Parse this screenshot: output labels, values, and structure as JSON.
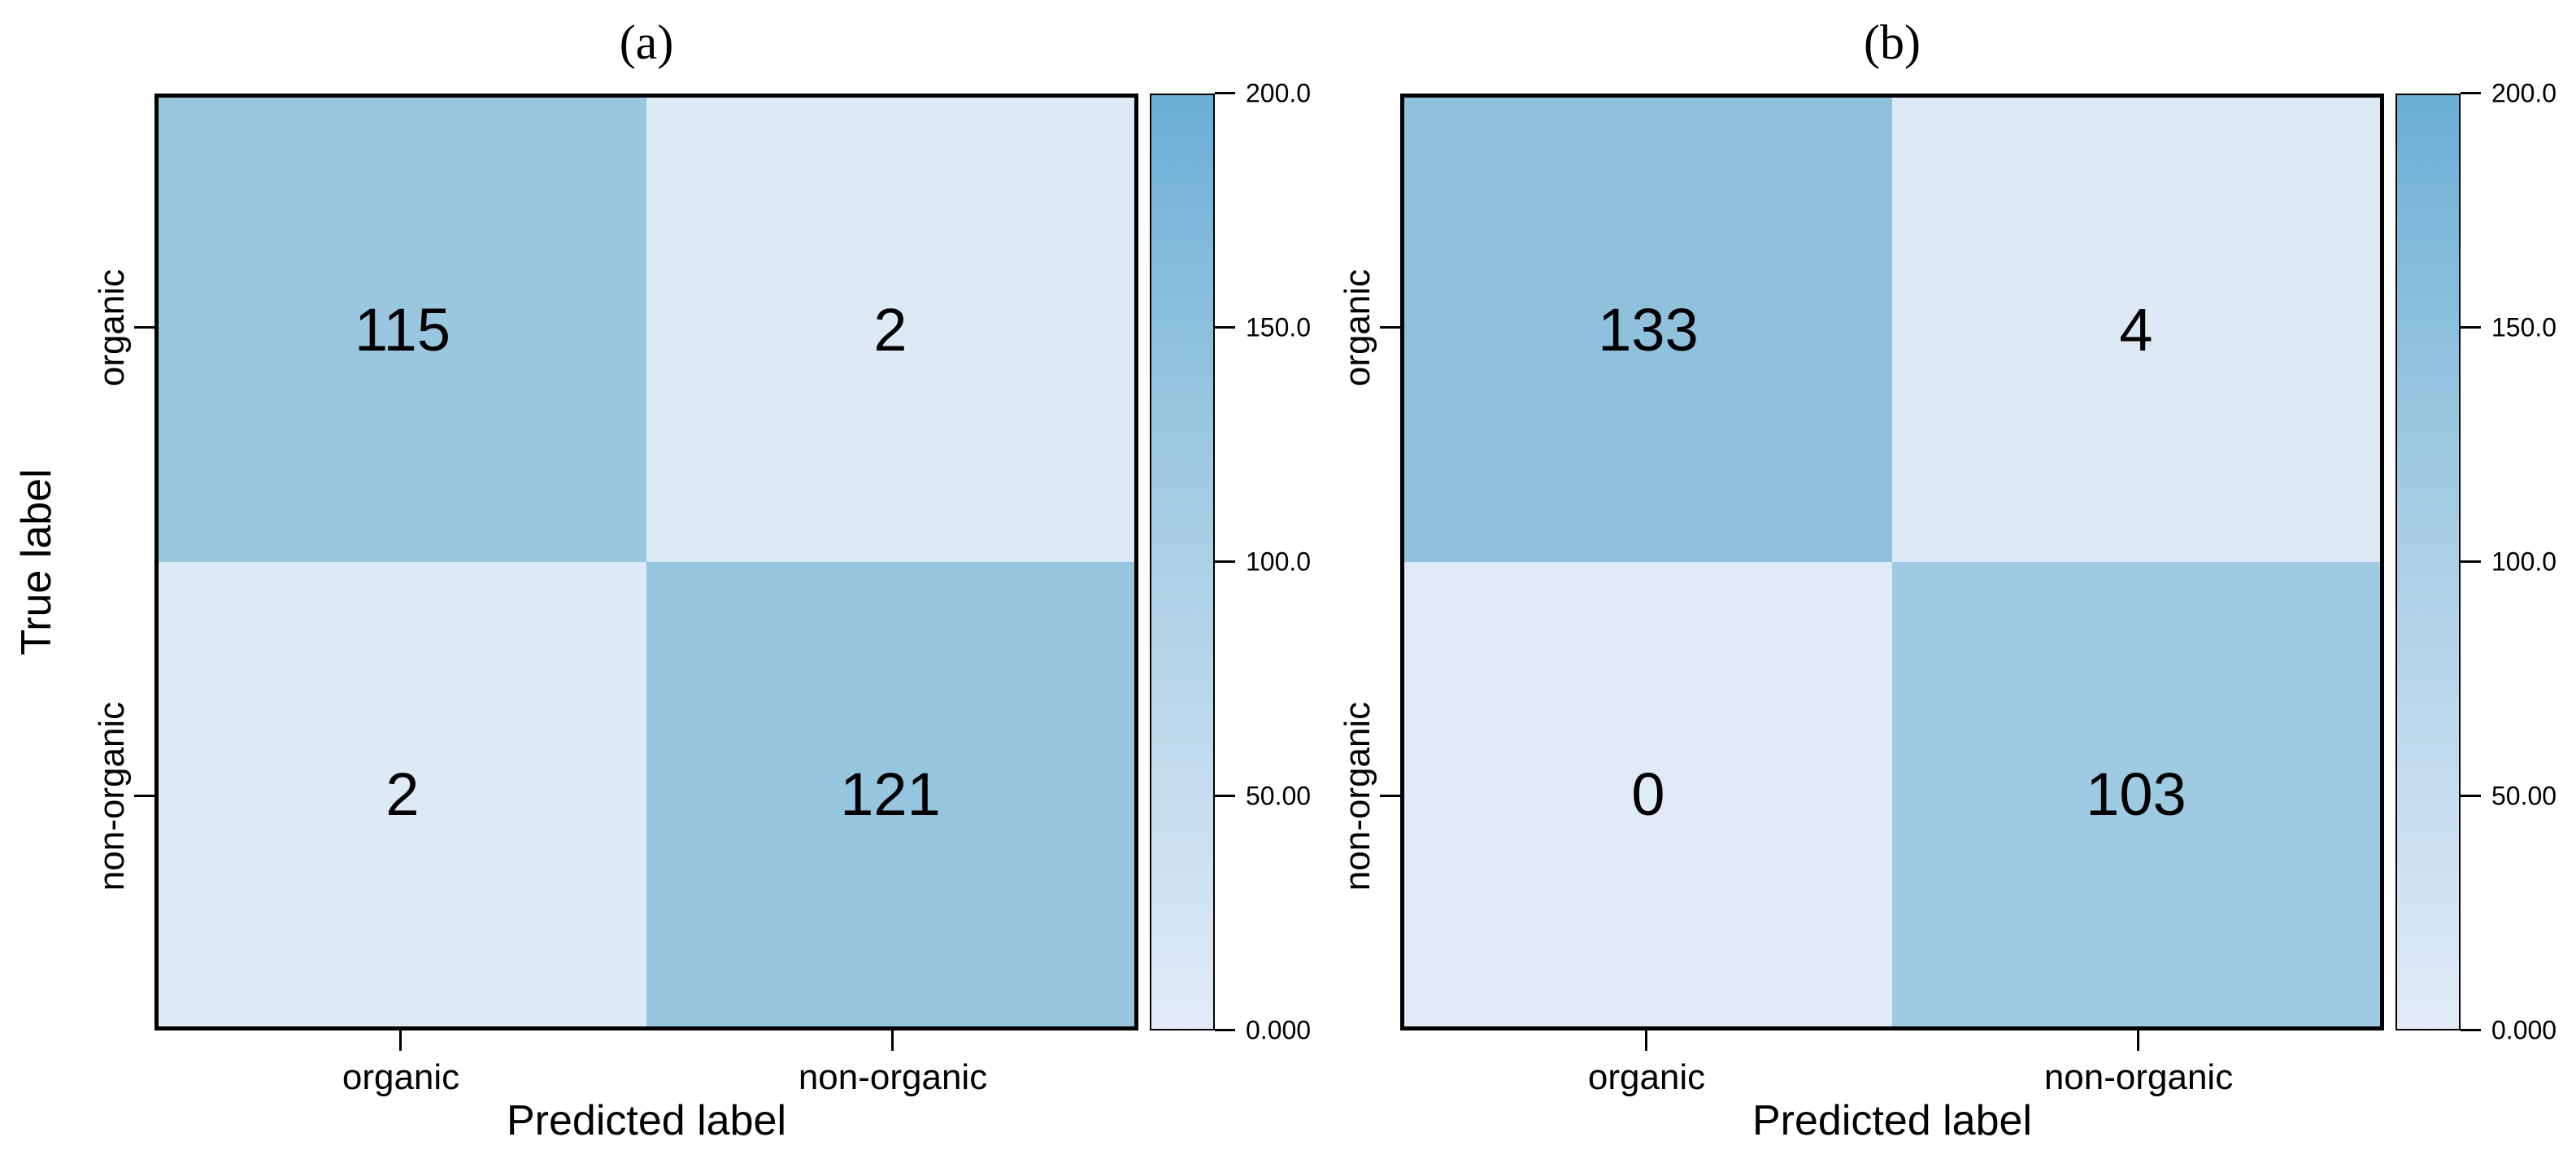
{
  "page": {
    "background": "#ffffff"
  },
  "chart_data": [
    {
      "type": "heatmap",
      "title": "(a)",
      "xlabel": "Predicted label",
      "ylabel": "True label",
      "x_categories": [
        "organic",
        "non-organic"
      ],
      "y_categories": [
        "organic",
        "non-organic"
      ],
      "values": [
        [
          115,
          2
        ],
        [
          2,
          121
        ]
      ],
      "cell_colors": [
        [
          "#99c7e0",
          "#dde9f5"
        ],
        [
          "#dde9f5",
          "#96c5df"
        ]
      ],
      "colorbar": {
        "min": 0.0,
        "max": 200.0,
        "tick_labels": [
          "200.0",
          "150.0",
          "100.0",
          "50.00",
          "0.000"
        ],
        "gradient_top": "#6aaed6",
        "gradient_bottom": "#e1ebf6"
      }
    },
    {
      "type": "heatmap",
      "title": "(b)",
      "xlabel": "Predicted label",
      "x_categories": [
        "organic",
        "non-organic"
      ],
      "y_categories": [
        "organic",
        "non-organic"
      ],
      "values": [
        [
          133,
          4
        ],
        [
          0,
          103
        ]
      ],
      "cell_colors": [
        [
          "#8fc1dd",
          "#dce9f5"
        ],
        [
          "#dfeaf6",
          "#9fcbe2"
        ]
      ],
      "colorbar": {
        "min": 0.0,
        "max": 200.0,
        "tick_labels": [
          "200.0",
          "150.0",
          "100.0",
          "50.00",
          "0.000"
        ],
        "gradient_top": "#6aaed6",
        "gradient_bottom": "#e1ebf6"
      }
    }
  ]
}
